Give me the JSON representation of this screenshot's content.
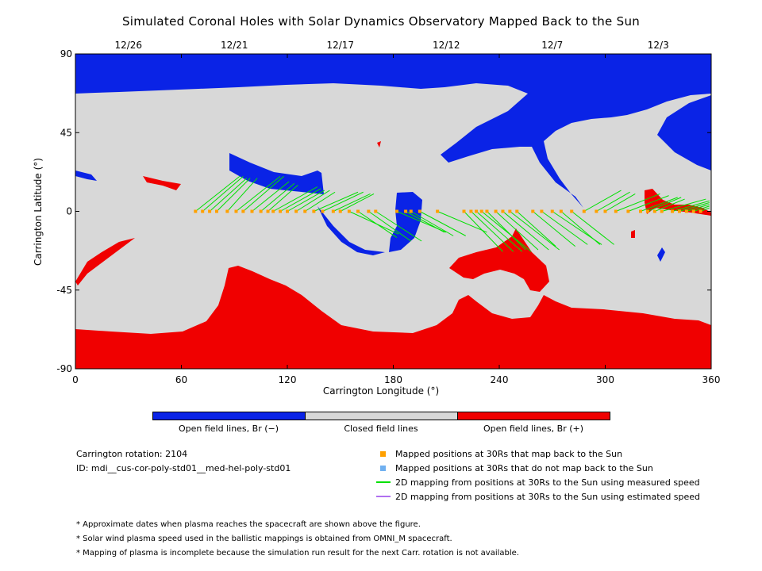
{
  "chart_data": {
    "type": "area",
    "title": "Simulated Coronal Holes with Solar Dynamics Observatory Mapped Back to the Sun",
    "xlabel": "Carrington Longitude (°)",
    "ylabel": "Carrington Latitude (°)",
    "xlim": [
      0,
      360
    ],
    "ylim": [
      -90,
      90
    ],
    "x_ticks": [
      0,
      60,
      120,
      180,
      240,
      300,
      360
    ],
    "y_ticks": [
      -90,
      -45,
      0,
      45,
      90
    ],
    "top_date_ticks": [
      {
        "label": "12/26",
        "lon": 30
      },
      {
        "label": "12/21",
        "lon": 90
      },
      {
        "label": "12/17",
        "lon": 150
      },
      {
        "label": "12/12",
        "lon": 210
      },
      {
        "label": "12/7",
        "lon": 270
      },
      {
        "label": "12/3",
        "lon": 330
      }
    ],
    "colors": {
      "open_negative": "#0a23e6",
      "closed": "#d8d8d8",
      "open_positive": "#f00000",
      "mapped": "#ffa000",
      "unmapped": "#70b0f0",
      "measured": "#00e000",
      "estimated": "#b070f0"
    },
    "mapped_positions_30Rs": [
      {
        "lon": 68,
        "lat": 0,
        "sun_lat": 20
      },
      {
        "lon": 72,
        "lat": 0,
        "sun_lat": 20
      },
      {
        "lon": 76,
        "lat": 0,
        "sun_lat": 19
      },
      {
        "lon": 80,
        "lat": 0,
        "sun_lat": 19
      },
      {
        "lon": 86,
        "lat": 0,
        "sun_lat": 19
      },
      {
        "lon": 91,
        "lat": 0,
        "sun_lat": 20
      },
      {
        "lon": 95,
        "lat": 0,
        "sun_lat": 20
      },
      {
        "lon": 100,
        "lat": 0,
        "sun_lat": 17
      },
      {
        "lon": 105,
        "lat": 0,
        "sun_lat": 16
      },
      {
        "lon": 109,
        "lat": 0,
        "sun_lat": 15
      },
      {
        "lon": 112,
        "lat": 0,
        "sun_lat": 14
      },
      {
        "lon": 116,
        "lat": 0,
        "sun_lat": 13
      },
      {
        "lon": 120,
        "lat": 0,
        "sun_lat": 12
      },
      {
        "lon": 125,
        "lat": 0,
        "sun_lat": 12
      },
      {
        "lon": 130,
        "lat": 0,
        "sun_lat": 11
      },
      {
        "lon": 135,
        "lat": 0,
        "sun_lat": 11
      },
      {
        "lon": 140,
        "lat": 0,
        "sun_lat": 11
      },
      {
        "lon": 146,
        "lat": 0,
        "sun_lat": 10
      },
      {
        "lon": 150,
        "lat": 0,
        "sun_lat": 10
      },
      {
        "lon": 155,
        "lat": 0,
        "sun_lat": -13
      },
      {
        "lon": 160,
        "lat": 0,
        "sun_lat": -15
      },
      {
        "lon": 166,
        "lat": 0,
        "sun_lat": -17
      },
      {
        "lon": 170,
        "lat": 0,
        "sun_lat": -17
      },
      {
        "lon": 182,
        "lat": 0,
        "sun_lat": -12
      },
      {
        "lon": 187,
        "lat": 0,
        "sun_lat": -12
      },
      {
        "lon": 190,
        "lat": 0,
        "sun_lat": -14
      },
      {
        "lon": 195,
        "lat": 0,
        "sun_lat": -14
      },
      {
        "lon": 205,
        "lat": 0,
        "sun_lat": -12
      },
      {
        "lon": 220,
        "lat": 0,
        "sun_lat": -23
      },
      {
        "lon": 224,
        "lat": 0,
        "sun_lat": -23
      },
      {
        "lon": 227,
        "lat": 0,
        "sun_lat": -23
      },
      {
        "lon": 230,
        "lat": 0,
        "sun_lat": -23
      },
      {
        "lon": 233,
        "lat": 0,
        "sun_lat": -22
      },
      {
        "lon": 238,
        "lat": 0,
        "sun_lat": -22
      },
      {
        "lon": 242,
        "lat": 0,
        "sun_lat": -22
      },
      {
        "lon": 246,
        "lat": 0,
        "sun_lat": -22
      },
      {
        "lon": 250,
        "lat": 0,
        "sun_lat": -20
      },
      {
        "lon": 259,
        "lat": 0,
        "sun_lat": -20
      },
      {
        "lon": 264,
        "lat": 0,
        "sun_lat": -19
      },
      {
        "lon": 270,
        "lat": 0,
        "sun_lat": -19
      },
      {
        "lon": 275,
        "lat": 0,
        "sun_lat": -19
      },
      {
        "lon": 281,
        "lat": 0,
        "sun_lat": -19
      },
      {
        "lon": 288,
        "lat": 0,
        "sun_lat": 12
      },
      {
        "lon": 295,
        "lat": 0,
        "sun_lat": 11
      },
      {
        "lon": 300,
        "lat": 0,
        "sun_lat": 10
      },
      {
        "lon": 306,
        "lat": 0,
        "sun_lat": 10
      },
      {
        "lon": 313,
        "lat": 0,
        "sun_lat": 9
      },
      {
        "lon": 320,
        "lat": 0,
        "sun_lat": 8
      },
      {
        "lon": 324,
        "lat": 0,
        "sun_lat": 8
      },
      {
        "lon": 328,
        "lat": 0,
        "sun_lat": 7
      },
      {
        "lon": 332,
        "lat": 0,
        "sun_lat": 7
      },
      {
        "lon": 338,
        "lat": 0,
        "sun_lat": 6
      },
      {
        "lon": 342,
        "lat": 0,
        "sun_lat": 5
      },
      {
        "lon": 346,
        "lat": 0,
        "sun_lat": 4
      },
      {
        "lon": 350,
        "lat": 0,
        "sun_lat": 3
      },
      {
        "lon": 354,
        "lat": 0,
        "sun_lat": 2
      }
    ]
  },
  "legend": {
    "open_neg": "Open field lines, Br (−)",
    "closed": "Closed field lines",
    "open_pos": "Open field lines, Br (+)"
  },
  "info": {
    "rotation": "Carrington rotation: 2104",
    "id": "ID: mdi__cus-cor-poly-std01__med-hel-poly-std01"
  },
  "markers": {
    "mapped": "Mapped positions at 30Rs that map back to the Sun",
    "unmapped": "Mapped positions at 30Rs that do not map back to the Sun",
    "measured": "2D mapping from positions at 30Rs to the Sun using measured speed",
    "estimated": "2D mapping from positions at 30Rs to the Sun using estimated speed"
  },
  "notes": [
    "* Approximate dates when plasma reaches the spacecraft are shown above the figure.",
    "* Solar wind plasma speed used in the ballistic mappings is obtained from OMNI_M spacecraft.",
    "* Mapping of plasma is incomplete because the simulation run result for the next Carr. rotation is not available."
  ]
}
